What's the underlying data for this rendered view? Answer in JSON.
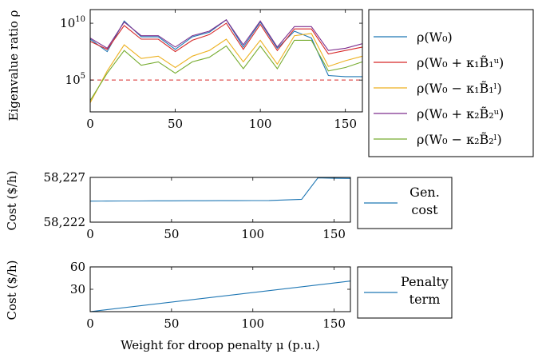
{
  "chart_data": [
    {
      "type": "line",
      "ylabel": "Eigenvalue ratio ρ",
      "yscale": "log",
      "xlim": [
        0,
        160
      ],
      "ylim_log10": [
        2.2,
        11.2
      ],
      "xticks": [
        0,
        50,
        100,
        150
      ],
      "yticks": [
        {
          "exp": 5,
          "label": "10"
        },
        {
          "exp": 10,
          "label": "10"
        }
      ],
      "x": [
        0,
        10,
        20,
        30,
        40,
        50,
        60,
        70,
        80,
        90,
        100,
        110,
        120,
        130,
        140,
        150,
        160
      ],
      "reference_line": {
        "value_log10": 5,
        "color": "#d62728",
        "style": "dashed"
      },
      "legend_position": "right",
      "series": [
        {
          "name": "ρ(W₀)",
          "color": "#1f77b4",
          "values_log10": [
            8.6,
            7.5,
            10.2,
            8.8,
            8.8,
            7.7,
            8.8,
            9.2,
            10.3,
            7.9,
            10.1,
            7.8,
            9.3,
            8.7,
            5.4,
            5.3,
            5.3
          ]
        },
        {
          "name": "ρ(W₀ + κ₁B̃₁ᵘ)",
          "color": "#d62728",
          "values_log10": [
            8.4,
            7.7,
            9.8,
            8.6,
            8.6,
            7.5,
            8.5,
            9.0,
            10.0,
            7.7,
            9.9,
            7.6,
            9.5,
            9.5,
            7.3,
            7.6,
            7.9
          ]
        },
        {
          "name": "ρ(W₀ − κ₁B̃₁ˡ)",
          "color": "#edb120",
          "values_log10": [
            3.0,
            5.8,
            8.1,
            6.9,
            7.1,
            6.1,
            7.1,
            7.6,
            8.6,
            6.6,
            8.5,
            6.4,
            8.9,
            9.1,
            6.2,
            6.7,
            7.1
          ]
        },
        {
          "name": "ρ(W₀ + κ₂B̃₂ᵘ)",
          "color": "#7e2f8e",
          "values_log10": [
            8.7,
            7.8,
            10.1,
            8.9,
            8.9,
            7.9,
            8.9,
            9.3,
            10.3,
            8.1,
            10.2,
            7.9,
            9.7,
            9.7,
            7.6,
            7.8,
            8.2
          ]
        },
        {
          "name": "ρ(W₀ − κ₂B̃₂ˡ)",
          "color": "#77ac30",
          "values_log10": [
            3.2,
            5.6,
            7.6,
            6.3,
            6.6,
            5.6,
            6.6,
            7.0,
            8.0,
            6.0,
            8.0,
            6.0,
            8.5,
            8.5,
            5.8,
            6.1,
            6.6
          ]
        }
      ]
    },
    {
      "type": "line",
      "ylabel": "Cost ($/h)",
      "xlim": [
        0,
        160
      ],
      "ylim": [
        58222,
        58227
      ],
      "xticks": [
        0,
        50,
        100,
        150
      ],
      "yticks": [
        {
          "value": 58222,
          "label": "58,222"
        },
        {
          "value": 58227,
          "label": "58,227"
        }
      ],
      "x": [
        0,
        10,
        20,
        30,
        40,
        50,
        60,
        70,
        80,
        90,
        100,
        110,
        120,
        130,
        140,
        150,
        160
      ],
      "legend_position": "right",
      "series": [
        {
          "name": "Gen. cost",
          "legend_lines": [
            "Gen.",
            "cost"
          ],
          "color": "#1f77b4",
          "values": [
            58224.35,
            58224.36,
            58224.37,
            58224.37,
            58224.38,
            58224.38,
            58224.39,
            58224.39,
            58224.4,
            58224.4,
            58224.41,
            58224.42,
            58224.48,
            58224.55,
            58226.95,
            58226.9,
            58226.88
          ]
        }
      ]
    },
    {
      "type": "line",
      "ylabel": "Cost ($/h)",
      "xlabel": "Weight for droop penalty μ (p.u.)",
      "xlim": [
        0,
        160
      ],
      "ylim": [
        0,
        60
      ],
      "xticks": [
        0,
        50,
        100,
        150
      ],
      "yticks": [
        {
          "value": 30,
          "label": "30"
        },
        {
          "value": 60,
          "label": "60"
        }
      ],
      "x": [
        0,
        160
      ],
      "legend_position": "right",
      "series": [
        {
          "name": "Penalty term",
          "legend_lines": [
            "Penalty",
            "term"
          ],
          "color": "#1f77b4",
          "values": [
            0,
            41
          ]
        }
      ]
    }
  ]
}
